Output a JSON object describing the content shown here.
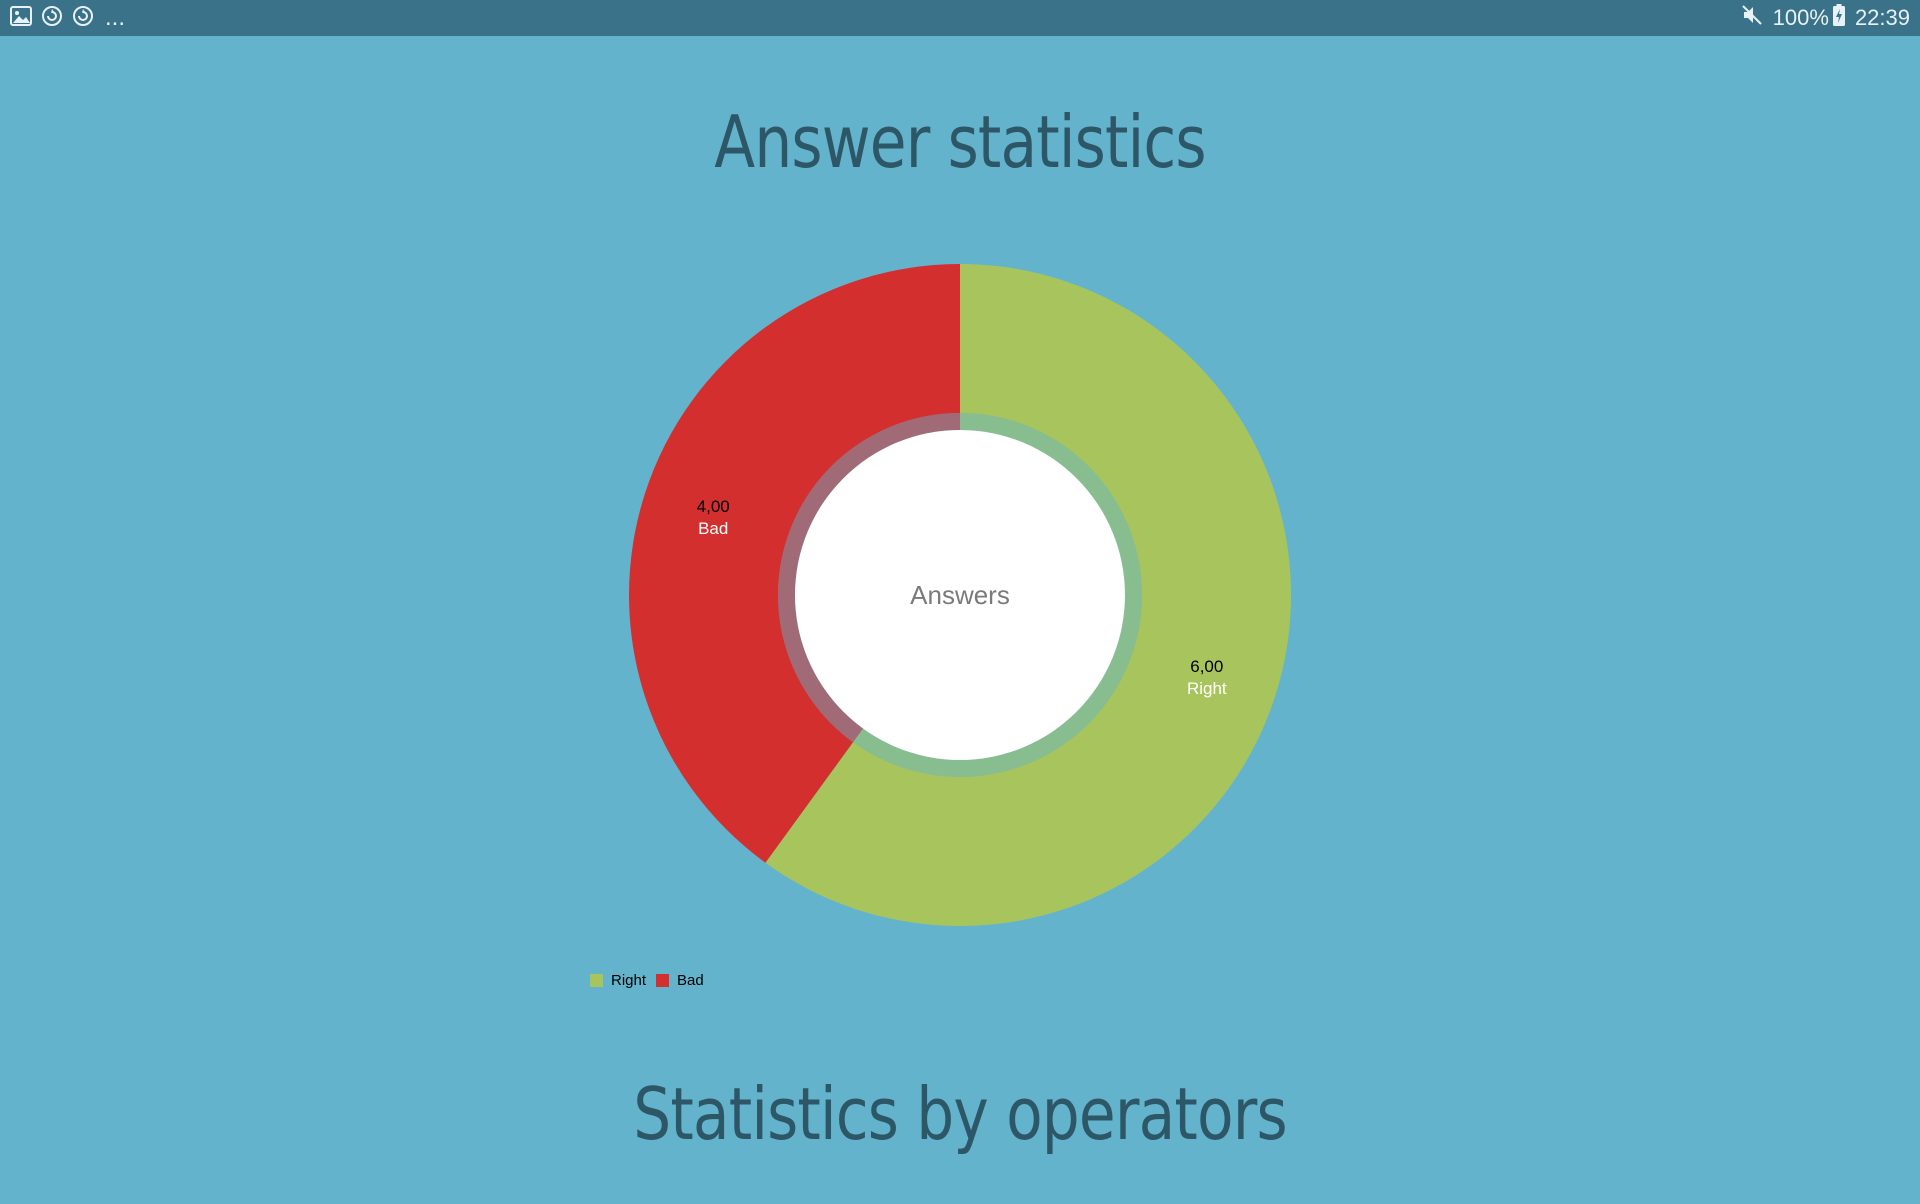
{
  "status_bar": {
    "left_icons": [
      "image-icon",
      "sync-icon",
      "sync-icon"
    ],
    "more_indicator": "...",
    "muted_icon": "speaker-muted-icon",
    "battery_percent": "100%",
    "battery_icon": "battery-charging-icon",
    "time": "22:39"
  },
  "page": {
    "title_answers": "Answer statistics",
    "title_operators": "Statistics by operators"
  },
  "colors": {
    "background": "#63b3cd",
    "status_bar": "#397289",
    "title": "#2d5766",
    "right": "#a8c55d",
    "bad": "#d32f2f",
    "hole": "#ffffff"
  },
  "chart_data": {
    "type": "pie",
    "center_text": "Answers",
    "value_format": "comma-decimal-2",
    "slices": [
      {
        "label": "Right",
        "value": 6,
        "value_text": "6,00",
        "color": "#a8c55d"
      },
      {
        "label": "Bad",
        "value": 4,
        "value_text": "4,00",
        "color": "#d32f2f"
      }
    ],
    "legend": {
      "placement": "bottom-left",
      "entries": [
        {
          "label": "Right",
          "color": "#a8c55d"
        },
        {
          "label": "Bad",
          "color": "#d32f2f"
        }
      ]
    }
  }
}
